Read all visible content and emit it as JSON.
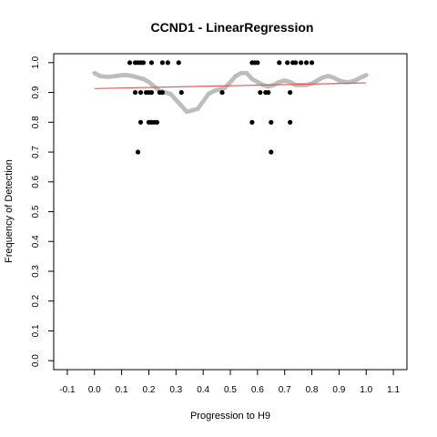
{
  "chart_data": {
    "type": "scatter",
    "title": "CCND1 - LinearRegression",
    "xlabel": "Progression to H9",
    "ylabel": "Frequency of Detection",
    "xlim": [
      -0.15,
      1.15
    ],
    "ylim": [
      -0.03,
      1.03
    ],
    "xticks": [
      "-0.1",
      "0.0",
      "0.1",
      "0.2",
      "0.3",
      "0.4",
      "0.5",
      "0.6",
      "0.7",
      "0.8",
      "0.9",
      "1.0",
      "1.1"
    ],
    "yticks": [
      "0.0",
      "0.1",
      "0.2",
      "0.3",
      "0.4",
      "0.5",
      "0.6",
      "0.7",
      "0.8",
      "0.9",
      "1.0"
    ],
    "grid": false,
    "legend": "none",
    "colors": {
      "points": "#000000",
      "smooth": "#bdbdbd",
      "fit": "#e8585a"
    },
    "points": [
      [
        0.13,
        1.0
      ],
      [
        0.15,
        1.0
      ],
      [
        0.16,
        1.0
      ],
      [
        0.17,
        1.0
      ],
      [
        0.18,
        1.0
      ],
      [
        0.21,
        1.0
      ],
      [
        0.25,
        1.0
      ],
      [
        0.27,
        1.0
      ],
      [
        0.31,
        1.0
      ],
      [
        0.15,
        0.9
      ],
      [
        0.17,
        0.9
      ],
      [
        0.19,
        0.9
      ],
      [
        0.2,
        0.9
      ],
      [
        0.21,
        0.9
      ],
      [
        0.24,
        0.9
      ],
      [
        0.25,
        0.9
      ],
      [
        0.32,
        0.9
      ],
      [
        0.17,
        0.8
      ],
      [
        0.2,
        0.8
      ],
      [
        0.21,
        0.8
      ],
      [
        0.22,
        0.8
      ],
      [
        0.23,
        0.8
      ],
      [
        0.16,
        0.7
      ],
      [
        0.47,
        0.9
      ],
      [
        0.58,
        1.0
      ],
      [
        0.59,
        1.0
      ],
      [
        0.6,
        1.0
      ],
      [
        0.68,
        1.0
      ],
      [
        0.71,
        1.0
      ],
      [
        0.73,
        1.0
      ],
      [
        0.74,
        1.0
      ],
      [
        0.76,
        1.0
      ],
      [
        0.78,
        1.0
      ],
      [
        0.8,
        1.0
      ],
      [
        0.61,
        0.9
      ],
      [
        0.63,
        0.9
      ],
      [
        0.64,
        0.9
      ],
      [
        0.72,
        0.9
      ],
      [
        0.58,
        0.8
      ],
      [
        0.65,
        0.8
      ],
      [
        0.72,
        0.8
      ],
      [
        0.65,
        0.7
      ]
    ],
    "smooth_line": [
      [
        0.0,
        0.965
      ],
      [
        0.02,
        0.955
      ],
      [
        0.05,
        0.952
      ],
      [
        0.08,
        0.955
      ],
      [
        0.1,
        0.958
      ],
      [
        0.12,
        0.958
      ],
      [
        0.14,
        0.955
      ],
      [
        0.16,
        0.95
      ],
      [
        0.18,
        0.945
      ],
      [
        0.2,
        0.935
      ],
      [
        0.22,
        0.92
      ],
      [
        0.24,
        0.905
      ],
      [
        0.26,
        0.9
      ],
      [
        0.28,
        0.895
      ],
      [
        0.3,
        0.875
      ],
      [
        0.32,
        0.855
      ],
      [
        0.34,
        0.835
      ],
      [
        0.36,
        0.84
      ],
      [
        0.38,
        0.845
      ],
      [
        0.4,
        0.87
      ],
      [
        0.42,
        0.895
      ],
      [
        0.44,
        0.905
      ],
      [
        0.46,
        0.91
      ],
      [
        0.48,
        0.915
      ],
      [
        0.5,
        0.935
      ],
      [
        0.52,
        0.955
      ],
      [
        0.54,
        0.965
      ],
      [
        0.56,
        0.965
      ],
      [
        0.58,
        0.945
      ],
      [
        0.6,
        0.935
      ],
      [
        0.62,
        0.925
      ],
      [
        0.64,
        0.92
      ],
      [
        0.66,
        0.925
      ],
      [
        0.68,
        0.935
      ],
      [
        0.7,
        0.94
      ],
      [
        0.72,
        0.935
      ],
      [
        0.74,
        0.925
      ],
      [
        0.76,
        0.925
      ],
      [
        0.78,
        0.925
      ],
      [
        0.8,
        0.93
      ],
      [
        0.82,
        0.94
      ],
      [
        0.84,
        0.95
      ],
      [
        0.86,
        0.955
      ],
      [
        0.88,
        0.95
      ],
      [
        0.9,
        0.94
      ],
      [
        0.92,
        0.935
      ],
      [
        0.94,
        0.935
      ],
      [
        0.96,
        0.94
      ],
      [
        0.98,
        0.95
      ],
      [
        1.0,
        0.958
      ]
    ],
    "fit_line": [
      [
        0.0,
        0.913
      ],
      [
        1.0,
        0.932
      ]
    ]
  }
}
